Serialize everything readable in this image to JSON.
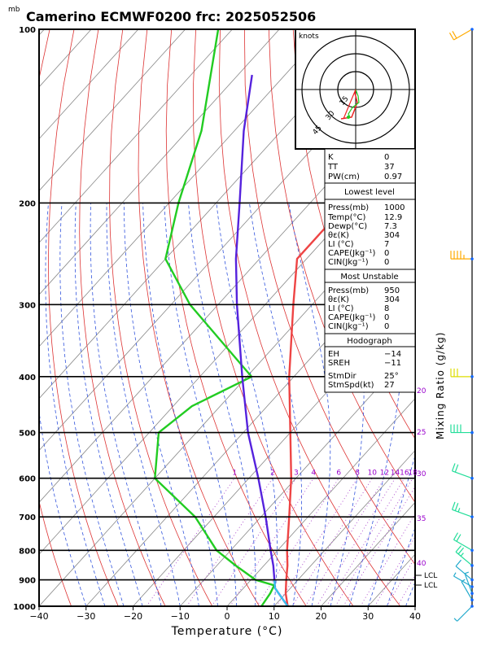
{
  "title": "Camerino ECMWF0200  frc: 2025052506",
  "pressure_unit_label": "mb",
  "x_axis_label": "Temperature (°C)",
  "right_axis_label": "Mixing Ratio (g/kg)",
  "hodograph": {
    "units_label": "knots",
    "ring_labels": [
      "15",
      "30",
      "45"
    ]
  },
  "mixing_ratio_ticks": [
    "1",
    "2",
    "3",
    "4",
    "6",
    "8",
    "10",
    "12",
    "14",
    "16",
    "18",
    "20",
    "25",
    "30",
    "35",
    "40"
  ],
  "lcl_labels": [
    "LCL",
    "LCL"
  ],
  "stats_table": {
    "indices": [
      {
        "label": "K",
        "value": "0"
      },
      {
        "label": "TT",
        "value": "37"
      },
      {
        "label": "PW(cm)",
        "value": "0.97"
      }
    ],
    "lowest_level": {
      "header": "Lowest level",
      "rows": [
        {
          "label": "Press(mb)",
          "value": "1000"
        },
        {
          "label": "Temp(°C)",
          "value": "12.9"
        },
        {
          "label": "Dewp(°C)",
          "value": "7.3"
        },
        {
          "label": "θε(K)",
          "value": "304"
        },
        {
          "label": "LI (°C)",
          "value": "7"
        },
        {
          "label": "CAPE(Jkg⁻¹)",
          "value": "0"
        },
        {
          "label": "CIN(Jkg⁻¹)",
          "value": "0"
        }
      ]
    },
    "most_unstable": {
      "header": "Most Unstable",
      "rows": [
        {
          "label": "Press(mb)",
          "value": "950"
        },
        {
          "label": "θε(K)",
          "value": "304"
        },
        {
          "label": "LI (°C)",
          "value": "8"
        },
        {
          "label": "CAPE(Jkg⁻¹)",
          "value": "0"
        },
        {
          "label": "CIN(Jkg⁻¹)",
          "value": "0"
        }
      ]
    },
    "hodograph_block": {
      "header": "Hodograph",
      "rows": [
        {
          "label": "EH",
          "value": "−14"
        },
        {
          "label": "SREH",
          "value": "−11"
        },
        {
          "label": "StmDir",
          "value": "25°"
        },
        {
          "label": "StmSpd(kt)",
          "value": "27"
        }
      ]
    }
  },
  "colors": {
    "isotherm": "#888888",
    "dry_adiabat": "#dd3333",
    "moist_adiabat": "#3355dd",
    "mixing_ratio": "#aa44cc",
    "temperature": "#ee4444",
    "dewpoint": "#22cc22",
    "parcel": "#5522dd",
    "wind_axis": "#000000",
    "barb_low": "#22aacc",
    "barb_mid": "#22dd99",
    "barb_upper": "#dddd00",
    "barb_high": "#ffaa00"
  },
  "chart_data": {
    "type": "line",
    "chart_kind": "skew-T log-P",
    "x_label": "Temperature (°C)",
    "y_label": "mb",
    "xlim": [
      -40,
      40
    ],
    "ylim": [
      1000,
      100
    ],
    "y_scale": "log",
    "x_ticks": [
      -40,
      -30,
      -20,
      -10,
      0,
      10,
      20,
      30,
      40
    ],
    "y_ticks": [
      1000,
      900,
      800,
      700,
      600,
      500,
      400,
      300,
      200,
      100
    ],
    "series": [
      {
        "id": "temperature",
        "points": [
          {
            "p": 1000,
            "t": 12.9
          },
          {
            "p": 950,
            "t": 10.0
          },
          {
            "p": 900,
            "t": 7.5
          },
          {
            "p": 850,
            "t": 5.0
          },
          {
            "p": 800,
            "t": 2.0
          },
          {
            "p": 700,
            "t": -4.0
          },
          {
            "p": 600,
            "t": -11.0
          },
          {
            "p": 500,
            "t": -20.0
          },
          {
            "p": 400,
            "t": -31.0
          },
          {
            "p": 300,
            "t": -44.0
          },
          {
            "p": 250,
            "t": -52.0
          },
          {
            "p": 200,
            "t": -52.0
          },
          {
            "p": 150,
            "t": -52.0
          },
          {
            "p": 100,
            "t": -50.0
          }
        ]
      },
      {
        "id": "dewpoint",
        "points": [
          {
            "p": 1000,
            "t": 7.3
          },
          {
            "p": 950,
            "t": 6.7
          },
          {
            "p": 920,
            "t": 6.0
          },
          {
            "p": 900,
            "t": 1.0
          },
          {
            "p": 850,
            "t": -6.0
          },
          {
            "p": 800,
            "t": -13.0
          },
          {
            "p": 700,
            "t": -24.0
          },
          {
            "p": 600,
            "t": -40.0
          },
          {
            "p": 500,
            "t": -48.0
          },
          {
            "p": 450,
            "t": -46.0
          },
          {
            "p": 400,
            "t": -39.0
          },
          {
            "p": 300,
            "t": -66.0
          },
          {
            "p": 250,
            "t": -80.0
          },
          {
            "p": 200,
            "t": -88.0
          },
          {
            "p": 150,
            "t": -97.0
          },
          {
            "p": 100,
            "t": -113.0
          }
        ]
      },
      {
        "id": "parcel",
        "points": [
          {
            "p": 1000,
            "t": 12.9
          },
          {
            "p": 950,
            "t": 8.5
          },
          {
            "p": 930,
            "t": 6.7
          },
          {
            "p": 900,
            "t": 5.0
          },
          {
            "p": 850,
            "t": 2.0
          },
          {
            "p": 800,
            "t": -1.5
          },
          {
            "p": 700,
            "t": -9.0
          },
          {
            "p": 600,
            "t": -18.0
          },
          {
            "p": 500,
            "t": -29.0
          },
          {
            "p": 400,
            "t": -41.0
          },
          {
            "p": 300,
            "t": -56.0
          },
          {
            "p": 250,
            "t": -65.0
          },
          {
            "p": 200,
            "t": -75.0
          },
          {
            "p": 150,
            "t": -88.0
          },
          {
            "p": 120,
            "t": -97.0
          }
        ]
      }
    ],
    "mixing_ratio_g_per_kg": [
      1,
      2,
      3,
      4,
      6,
      8,
      10,
      12,
      14,
      16,
      18,
      20,
      25,
      30,
      35,
      40
    ],
    "wind_profile": [
      {
        "p": 1000,
        "dir_deg": 225,
        "speed_kt": 8
      },
      {
        "p": 975,
        "dir_deg": 330,
        "speed_kt": 5
      },
      {
        "p": 950,
        "dir_deg": 340,
        "speed_kt": 8
      },
      {
        "p": 925,
        "dir_deg": 300,
        "speed_kt": 8
      },
      {
        "p": 900,
        "dir_deg": 310,
        "speed_kt": 10
      },
      {
        "p": 850,
        "dir_deg": 310,
        "speed_kt": 25
      },
      {
        "p": 800,
        "dir_deg": 300,
        "speed_kt": 20
      },
      {
        "p": 700,
        "dir_deg": 290,
        "speed_kt": 25
      },
      {
        "p": 600,
        "dir_deg": 290,
        "speed_kt": 20
      },
      {
        "p": 500,
        "dir_deg": 270,
        "speed_kt": 40
      },
      {
        "p": 400,
        "dir_deg": 270,
        "speed_kt": 30
      },
      {
        "p": 250,
        "dir_deg": 270,
        "speed_kt": 45
      },
      {
        "p": 100,
        "dir_deg": 240,
        "speed_kt": 20
      }
    ]
  }
}
